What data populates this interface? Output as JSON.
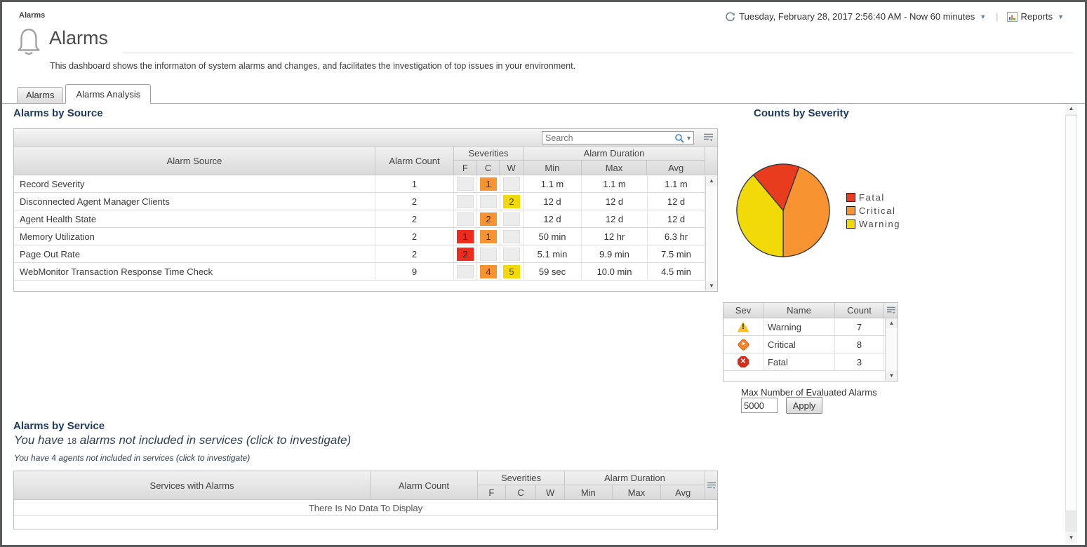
{
  "window": {
    "breadcrumb": "Alarms"
  },
  "header": {
    "title": "Alarms",
    "description": "This dashboard shows the informaton of system alarms and changes, and facilitates the investigation of top issues in your environment.",
    "time_range": "Tuesday, February 28, 2017 2:56:40 AM - Now 60 minutes",
    "reports_label": "Reports"
  },
  "tabs": {
    "alarms": "Alarms",
    "alarms_analysis": "Alarms Analysis"
  },
  "alarms_by_source": {
    "title": "Alarms by Source",
    "search_placeholder": "Search",
    "columns": {
      "source": "Alarm Source",
      "count": "Alarm Count",
      "severities": "Severities",
      "f": "F",
      "c": "C",
      "w": "W",
      "duration": "Alarm Duration",
      "min": "Min",
      "max": "Max",
      "avg": "Avg"
    },
    "rows": [
      {
        "source": "Record Severity",
        "count": "1",
        "f": "",
        "c": "1",
        "w": "",
        "min": "1.1 m",
        "max": "1.1 m",
        "avg": "1.1 m"
      },
      {
        "source": "Disconnected Agent Manager Clients",
        "count": "2",
        "f": "",
        "c": "",
        "w": "2",
        "min": "12 d",
        "max": "12 d",
        "avg": "12 d"
      },
      {
        "source": "Agent Health State",
        "count": "2",
        "f": "",
        "c": "2",
        "w": "",
        "min": "12 d",
        "max": "12 d",
        "avg": "12 d"
      },
      {
        "source": "Memory Utilization",
        "count": "2",
        "f": "1",
        "c": "1",
        "w": "",
        "min": "50 min",
        "max": "12 hr",
        "avg": "6.3 hr"
      },
      {
        "source": "Page Out Rate",
        "count": "2",
        "f": "2",
        "c": "",
        "w": "",
        "min": "5.1 min",
        "max": "9.9 min",
        "avg": "7.5 min"
      },
      {
        "source": "WebMonitor Transaction Response Time Check",
        "count": "9",
        "f": "",
        "c": "4",
        "w": "5",
        "min": "59 sec",
        "max": "10.0 min",
        "avg": "4.5 min"
      }
    ]
  },
  "chart_data": {
    "type": "pie",
    "title": "Counts by Severity",
    "total": 18,
    "start_angle_deg": 20,
    "slices": [
      {
        "label": "Critical",
        "value": 8,
        "color": "#F79331"
      },
      {
        "label": "Warning",
        "value": 7,
        "color": "#F2D908"
      },
      {
        "label": "Fatal",
        "value": 3,
        "color": "#E93B1E"
      }
    ],
    "legend": [
      {
        "label": "Fatal",
        "color": "#E93B1E"
      },
      {
        "label": "Critical",
        "color": "#F79331"
      },
      {
        "label": "Warning",
        "color": "#F2D908"
      }
    ]
  },
  "severity_table": {
    "columns": {
      "sev": "Sev",
      "name": "Name",
      "count": "Count"
    },
    "rows": [
      {
        "name": "Warning",
        "count": "7"
      },
      {
        "name": "Critical",
        "count": "8"
      },
      {
        "name": "Fatal",
        "count": "3"
      }
    ]
  },
  "max_alarms": {
    "label": "Max Number of Evaluated Alarms",
    "value": "5000",
    "apply_label": "Apply"
  },
  "alarms_by_service": {
    "title": "Alarms by Service",
    "line1_prefix": "You have",
    "line1_count": "18",
    "line1_rest": "alarms not included in services (click to investigate)",
    "line2_prefix": "You have",
    "line2_count": "4",
    "line2_rest": "agents not included in services (click to investigate)",
    "columns": {
      "source": "Services with Alarms",
      "count": "Alarm Count",
      "severities": "Severities",
      "f": "F",
      "c": "C",
      "w": "W",
      "duration": "Alarm Duration",
      "min": "Min",
      "max": "Max",
      "avg": "Avg"
    },
    "no_data": "There Is No Data To Display"
  }
}
